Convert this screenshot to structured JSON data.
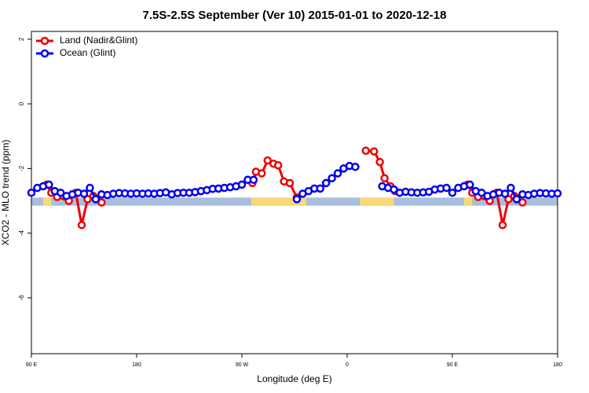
{
  "chart_data": {
    "type": "line",
    "title": "7.5S-2.5S September (Ver 10)   2015-01-01 to 2020-12-18",
    "x_label": "Longitude (deg E)",
    "y_label": "XCO2 - MLO trend (ppm)",
    "xlim": [
      90,
      540
    ],
    "xticks": [
      {
        "value": 90,
        "label": "90 E"
      },
      180,
      {
        "value": 270,
        "label": "90 W"
      },
      {
        "value": 360,
        "label": "0"
      },
      {
        "value": 450,
        "label": "90 E"
      },
      {
        "value": 540,
        "label": "180"
      }
    ],
    "ylim": [
      -7.73,
      2.24
    ],
    "yticks": [
      2,
      0,
      -2,
      -4,
      -6
    ],
    "legend": "top-left",
    "mask": {
      "ylim": [
        -3.15,
        -2.9
      ],
      "ocean_color": "#a8bedd",
      "land_color": "#f8d878",
      "land": [
        [
          100,
          107
        ],
        [
          278,
          325
        ],
        [
          371,
          400
        ],
        [
          460,
          467
        ]
      ]
    },
    "series": [
      {
        "name": "Land (Nadir&Glint)",
        "color": "#ee0000",
        "x": [
          103,
          107,
          112,
          122,
          128,
          133,
          138,
          143,
          150,
          200,
          279,
          282,
          287,
          292,
          297,
          301,
          306,
          311,
          317,
          340,
          376,
          383,
          388,
          392,
          397,
          401,
          420,
          463,
          467,
          472,
          482,
          488,
          493,
          498,
          503,
          510
        ],
        "values": [
          -2.5,
          -2.75,
          -2.88,
          -3.0,
          -2.75,
          -3.75,
          -2.95,
          -2.85,
          -3.05,
          null,
          -2.45,
          -2.1,
          -2.15,
          -1.75,
          -1.85,
          -1.9,
          -2.4,
          -2.45,
          -2.9,
          null,
          -1.45,
          -1.47,
          -1.8,
          -2.3,
          -2.55,
          -2.7,
          null,
          -2.5,
          -2.75,
          -2.88,
          -3.0,
          -2.75,
          -3.75,
          -2.95,
          -2.85,
          -3.05
        ]
      },
      {
        "name": "Ocean (Glint)",
        "color": "#0000ee",
        "x": [
          90,
          95,
          100,
          105,
          110,
          115,
          120,
          125,
          130,
          135,
          140,
          145,
          150,
          155,
          160,
          165,
          170,
          175,
          180,
          185,
          190,
          195,
          200,
          205,
          210,
          215,
          220,
          225,
          230,
          235,
          240,
          245,
          250,
          255,
          260,
          265,
          270,
          275,
          280,
          300,
          317,
          322,
          327,
          332,
          337,
          342,
          347,
          352,
          357,
          362,
          367,
          375,
          390,
          395,
          400,
          405,
          410,
          415,
          420,
          425,
          430,
          435,
          440,
          445,
          450,
          455,
          460,
          465,
          470,
          475,
          480,
          485,
          490,
          495,
          500,
          505,
          510,
          515,
          520,
          525,
          530,
          535,
          540
        ],
        "values": [
          -2.75,
          -2.6,
          -2.55,
          -2.5,
          -2.7,
          -2.75,
          -2.85,
          -2.8,
          -2.75,
          -2.78,
          -2.6,
          -2.95,
          -2.8,
          -2.82,
          -2.78,
          -2.76,
          -2.77,
          -2.78,
          -2.77,
          -2.78,
          -2.77,
          -2.78,
          -2.76,
          -2.74,
          -2.8,
          -2.76,
          -2.75,
          -2.75,
          -2.73,
          -2.7,
          -2.67,
          -2.63,
          -2.62,
          -2.6,
          -2.58,
          -2.55,
          -2.5,
          -2.35,
          -2.35,
          null,
          -2.95,
          -2.78,
          -2.7,
          -2.62,
          -2.62,
          -2.45,
          -2.3,
          -2.15,
          -2.0,
          -1.92,
          -1.95,
          null,
          -2.55,
          -2.6,
          -2.65,
          -2.75,
          -2.72,
          -2.74,
          -2.75,
          -2.74,
          -2.72,
          -2.65,
          -2.62,
          -2.6,
          -2.75,
          -2.6,
          -2.55,
          -2.5,
          -2.7,
          -2.75,
          -2.85,
          -2.8,
          -2.75,
          -2.78,
          -2.6,
          -2.95,
          -2.8,
          -2.82,
          -2.78,
          -2.76,
          -2.77,
          -2.78,
          -2.77
        ]
      }
    ]
  }
}
